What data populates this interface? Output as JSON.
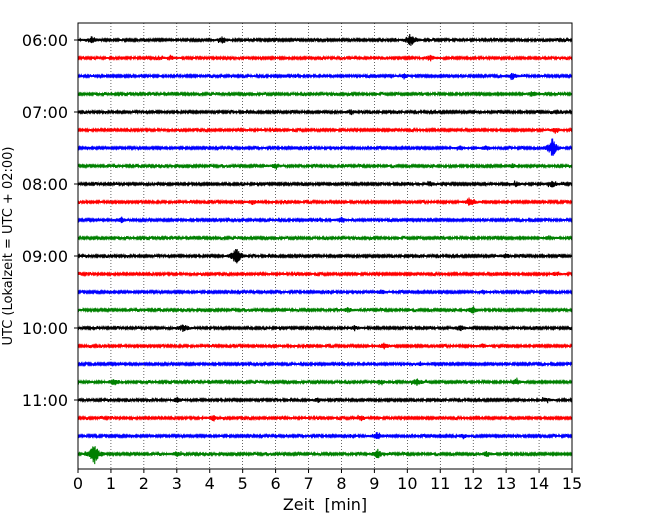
{
  "chart_data": {
    "type": "line",
    "title": "",
    "xlabel": "Zeit  [min]",
    "ylabel": "UTC (Lokalzeit = UTC + 02:00)",
    "xlim": [
      0,
      15
    ],
    "x_ticks": [
      0,
      1,
      2,
      3,
      4,
      5,
      6,
      7,
      8,
      9,
      10,
      11,
      12,
      13,
      14,
      15
    ],
    "y_tick_labels": [
      "06:00",
      "07:00",
      "08:00",
      "09:00",
      "10:00",
      "11:00"
    ],
    "grid": "vertical dotted at each minute",
    "line_colors": [
      "#000000",
      "#ff0000",
      "#0000ff",
      "#008000"
    ],
    "traces": [
      {
        "start": "06:00",
        "events": [
          {
            "t": 10.1,
            "amp": 2.2
          },
          {
            "t": 0.4,
            "amp": 1.1
          },
          {
            "t": 4.4,
            "amp": 1.1
          }
        ]
      },
      {
        "start": "06:15",
        "events": [
          {
            "t": 10.7,
            "amp": 1.0
          },
          {
            "t": 2.8,
            "amp": 0.8
          }
        ]
      },
      {
        "start": "06:30",
        "events": [
          {
            "t": 13.2,
            "amp": 1.1
          },
          {
            "t": 9.9,
            "amp": 0.9
          }
        ]
      },
      {
        "start": "06:45",
        "events": [
          {
            "t": 13.8,
            "amp": 0.9
          }
        ]
      },
      {
        "start": "07:00",
        "events": [
          {
            "t": 8.3,
            "amp": 0.9
          }
        ]
      },
      {
        "start": "07:15",
        "events": [
          {
            "t": 14.5,
            "amp": 0.8
          }
        ]
      },
      {
        "start": "07:30",
        "events": [
          {
            "t": 14.4,
            "amp": 3.2
          },
          {
            "t": 11.6,
            "amp": 0.8
          },
          {
            "t": 12.4,
            "amp": 0.8
          }
        ]
      },
      {
        "start": "07:45",
        "events": [
          {
            "t": 13.2,
            "amp": 0.8
          },
          {
            "t": 6.0,
            "amp": 0.7
          }
        ]
      },
      {
        "start": "08:00",
        "events": [
          {
            "t": 14.4,
            "amp": 1.2
          },
          {
            "t": 13.3,
            "amp": 0.8
          },
          {
            "t": 10.7,
            "amp": 0.7
          }
        ]
      },
      {
        "start": "08:15",
        "events": [
          {
            "t": 11.9,
            "amp": 1.6
          },
          {
            "t": 5.3,
            "amp": 0.8
          }
        ]
      },
      {
        "start": "08:30",
        "events": [
          {
            "t": 1.3,
            "amp": 1.1
          },
          {
            "t": 8.0,
            "amp": 0.9
          }
        ]
      },
      {
        "start": "08:45",
        "events": [
          {
            "t": 14.3,
            "amp": 0.7
          }
        ]
      },
      {
        "start": "09:00",
        "events": [
          {
            "t": 4.8,
            "amp": 3.2
          },
          {
            "t": 13.0,
            "amp": 0.7
          }
        ]
      },
      {
        "start": "09:15",
        "events": [
          {
            "t": 14.5,
            "amp": 0.7
          }
        ]
      },
      {
        "start": "09:30",
        "events": [
          {
            "t": 9.2,
            "amp": 0.8
          },
          {
            "t": 12.3,
            "amp": 0.7
          }
        ]
      },
      {
        "start": "09:45",
        "events": [
          {
            "t": 12.0,
            "amp": 1.2
          },
          {
            "t": 8.2,
            "amp": 0.8
          }
        ]
      },
      {
        "start": "10:00",
        "events": [
          {
            "t": 3.2,
            "amp": 1.4
          },
          {
            "t": 11.6,
            "amp": 1.0
          },
          {
            "t": 8.4,
            "amp": 0.8
          }
        ]
      },
      {
        "start": "10:15",
        "events": [
          {
            "t": 9.3,
            "amp": 1.0
          },
          {
            "t": 12.3,
            "amp": 0.7
          }
        ]
      },
      {
        "start": "10:30",
        "events": [
          {
            "t": 10.4,
            "amp": 0.7
          }
        ]
      },
      {
        "start": "10:45",
        "events": [
          {
            "t": 1.1,
            "amp": 1.2
          },
          {
            "t": 10.3,
            "amp": 1.3
          },
          {
            "t": 13.3,
            "amp": 1.0
          },
          {
            "t": 9.2,
            "amp": 0.8
          }
        ]
      },
      {
        "start": "11:00",
        "events": [
          {
            "t": 3.0,
            "amp": 0.8
          },
          {
            "t": 7.3,
            "amp": 0.8
          },
          {
            "t": 14.2,
            "amp": 0.8
          }
        ]
      },
      {
        "start": "11:15",
        "events": [
          {
            "t": 4.1,
            "amp": 0.8
          },
          {
            "t": 8.6,
            "amp": 0.8
          }
        ]
      },
      {
        "start": "11:30",
        "events": [
          {
            "t": 9.1,
            "amp": 1.3
          },
          {
            "t": 11.7,
            "amp": 0.8
          }
        ]
      },
      {
        "start": "11:45",
        "events": [
          {
            "t": 0.5,
            "amp": 3.6
          },
          {
            "t": 9.1,
            "amp": 1.5
          },
          {
            "t": 3.0,
            "amp": 0.8
          },
          {
            "t": 12.4,
            "amp": 0.8
          }
        ]
      }
    ]
  }
}
